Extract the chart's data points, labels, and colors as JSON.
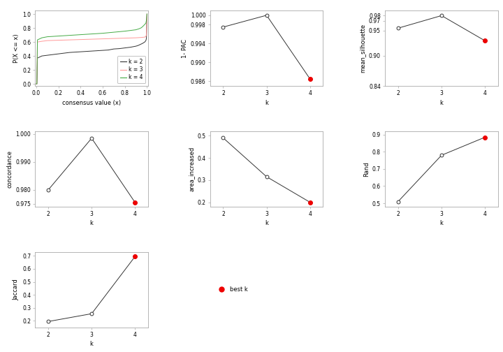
{
  "ecdf": {
    "k2": {
      "x": [
        0.0,
        0.005,
        0.01,
        0.05,
        0.1,
        0.15,
        0.2,
        0.25,
        0.3,
        0.35,
        0.4,
        0.45,
        0.5,
        0.55,
        0.6,
        0.65,
        0.7,
        0.75,
        0.8,
        0.85,
        0.9,
        0.92,
        0.94,
        0.96,
        0.98,
        0.99,
        0.995,
        1.0
      ],
      "y": [
        0.0,
        0.0,
        0.37,
        0.4,
        0.41,
        0.42,
        0.43,
        0.44,
        0.45,
        0.455,
        0.46,
        0.465,
        0.47,
        0.475,
        0.48,
        0.485,
        0.5,
        0.505,
        0.515,
        0.525,
        0.54,
        0.55,
        0.565,
        0.58,
        0.6,
        0.62,
        0.65,
        1.0
      ],
      "color": "#333333"
    },
    "k3": {
      "x": [
        0.0,
        0.005,
        0.01,
        0.05,
        0.1,
        0.2,
        0.3,
        0.4,
        0.5,
        0.6,
        0.7,
        0.8,
        0.9,
        0.95,
        0.98,
        0.99,
        0.995,
        1.0
      ],
      "y": [
        0.0,
        0.0,
        0.6,
        0.61,
        0.62,
        0.625,
        0.63,
        0.635,
        0.64,
        0.645,
        0.65,
        0.655,
        0.66,
        0.665,
        0.67,
        0.68,
        0.7,
        1.0
      ],
      "color": "#ff9999"
    },
    "k4": {
      "x": [
        0.0,
        0.005,
        0.01,
        0.05,
        0.1,
        0.2,
        0.3,
        0.4,
        0.5,
        0.6,
        0.7,
        0.8,
        0.9,
        0.93,
        0.95,
        0.97,
        0.99,
        0.995,
        1.0
      ],
      "y": [
        0.0,
        0.0,
        0.63,
        0.66,
        0.675,
        0.685,
        0.695,
        0.705,
        0.715,
        0.725,
        0.74,
        0.755,
        0.775,
        0.79,
        0.805,
        0.835,
        0.87,
        0.91,
        1.0
      ],
      "color": "#44aa44"
    }
  },
  "pac": {
    "k": [
      2,
      3,
      4
    ],
    "y": [
      0.9975,
      1.0,
      0.9865
    ],
    "best_k": 4,
    "ylim": [
      0.985,
      1.001
    ],
    "yticks": [
      0.986,
      0.99,
      0.994,
      0.998,
      1.0
    ]
  },
  "silhouette": {
    "k": [
      2,
      3,
      4
    ],
    "y": [
      0.955,
      0.98,
      0.93
    ],
    "best_k": 4,
    "ylim": [
      0.925,
      0.99
    ],
    "yticks": [
      0.84,
      0.9,
      0.95,
      0.97,
      0.98
    ]
  },
  "concordance": {
    "k": [
      2,
      3,
      4
    ],
    "y": [
      0.98,
      0.9985,
      0.9755
    ],
    "best_k": 4,
    "ylim": [
      0.974,
      1.001
    ],
    "yticks": [
      0.975,
      0.98,
      0.99,
      1.0
    ]
  },
  "area_increased": {
    "k": [
      2,
      3,
      4
    ],
    "y": [
      0.49,
      0.315,
      0.2
    ],
    "best_k": 4,
    "ylim": [
      0.18,
      0.52
    ],
    "yticks": [
      0.2,
      0.3,
      0.4,
      0.5
    ]
  },
  "rand": {
    "k": [
      2,
      3,
      4
    ],
    "y": [
      0.51,
      0.78,
      0.885
    ],
    "best_k": 4,
    "ylim": [
      0.48,
      0.92
    ],
    "yticks": [
      0.5,
      0.6,
      0.7,
      0.8,
      0.9
    ]
  },
  "jaccard": {
    "k": [
      2,
      3,
      4
    ],
    "y": [
      0.195,
      0.255,
      0.695
    ],
    "best_k": 4,
    "ylim": [
      0.15,
      0.73
    ],
    "yticks": [
      0.2,
      0.3,
      0.4,
      0.5,
      0.6,
      0.7
    ]
  },
  "bg_color": "#ffffff",
  "line_color": "#333333",
  "best_k_color": "#ee0000",
  "ecdf_xlabel": "consensus value (x)",
  "ecdf_ylabel": "P(X <= x)",
  "pac_ylabel": "1- PAC",
  "sil_ylabel": "mean_silhouette",
  "con_ylabel": "concordance",
  "area_ylabel": "area_increased",
  "rand_ylabel": "Rand",
  "jac_ylabel": "Jaccard",
  "k_xlabel": "k"
}
